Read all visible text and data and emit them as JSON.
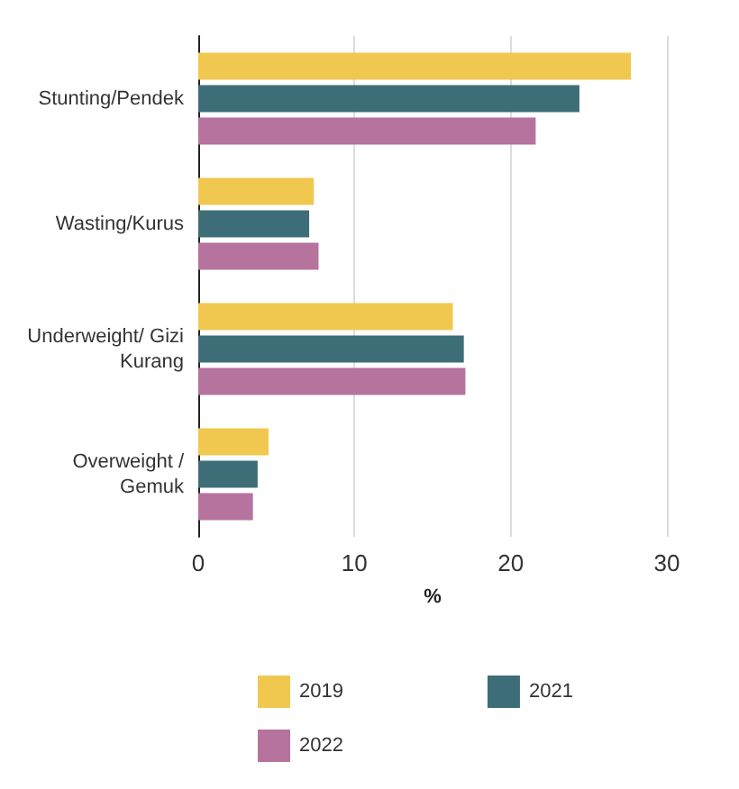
{
  "chart_data": {
    "type": "bar",
    "orientation": "horizontal",
    "xlabel": "%",
    "categories": [
      "Stunting/Pendek",
      "Wasting/Kurus",
      "Underweight/ Gizi Kurang",
      "Overweight /Gemuk"
    ],
    "series": [
      {
        "name": "2019",
        "color": "#f0c850",
        "values": [
          27.7,
          7.4,
          16.3,
          4.5
        ]
      },
      {
        "name": "2021",
        "color": "#3d6e77",
        "values": [
          24.4,
          7.1,
          17.0,
          3.8
        ]
      },
      {
        "name": "2022",
        "color": "#b5739d",
        "values": [
          21.6,
          7.7,
          17.1,
          3.5
        ]
      }
    ],
    "xlim": [
      0,
      30
    ],
    "xticks": [
      0,
      10,
      20,
      30
    ],
    "grid": "x",
    "legend": "bottom"
  }
}
